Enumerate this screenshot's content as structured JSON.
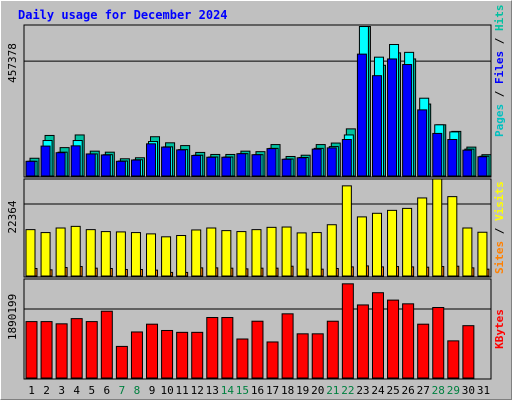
{
  "chart_data": {
    "type": "bar",
    "title": "Daily usage for December 2024",
    "categories": [
      "1",
      "2",
      "3",
      "4",
      "5",
      "6",
      "7",
      "8",
      "9",
      "10",
      "11",
      "12",
      "13",
      "14",
      "15",
      "16",
      "17",
      "18",
      "19",
      "20",
      "21",
      "22",
      "23",
      "24",
      "25",
      "26",
      "27",
      "28",
      "29",
      "30",
      "31"
    ],
    "weekend_days": [
      "7",
      "8",
      "14",
      "15",
      "21",
      "22",
      "28",
      "29"
    ],
    "top_panel": {
      "scale_label": "457378",
      "scale_value": 457378,
      "ylim": [
        0,
        600000
      ],
      "series": [
        {
          "name": "Pages",
          "color": "#0000ff",
          "values": [
            62000,
            122000,
            96000,
            123000,
            91000,
            87000,
            62000,
            67000,
            131000,
            118000,
            107000,
            85000,
            78000,
            78000,
            92000,
            88000,
            112000,
            70000,
            76000,
            110000,
            115000,
            148000,
            485000,
            400000,
            466000,
            444000,
            265000,
            172000,
            148000,
            106000,
            80000
          ]
        },
        {
          "name": "Files",
          "color": "#00ffff",
          "values": [
            62000,
            144000,
            98000,
            144000,
            91000,
            88000,
            63000,
            68000,
            140000,
            119000,
            108000,
            86000,
            79000,
            79000,
            92000,
            88000,
            113000,
            71000,
            77000,
            113000,
            120000,
            166000,
            594000,
            473000,
            523000,
            492000,
            311000,
            206000,
            178000,
            110000,
            82000
          ]
        },
        {
          "name": "Hits",
          "color": "#00c0a0",
          "values": [
            74000,
            164000,
            116000,
            166000,
            102000,
            98000,
            72000,
            76000,
            159000,
            135000,
            124000,
            97000,
            89000,
            89000,
            102000,
            100000,
            128000,
            81000,
            86000,
            128000,
            134000,
            190000,
            594000,
            441000,
            490000,
            466000,
            288000,
            206000,
            180000,
            118000,
            88000
          ]
        }
      ]
    },
    "middle_panel": {
      "scale_label": "22364",
      "scale_value": 22364,
      "ylim": [
        0,
        30000
      ],
      "series": [
        {
          "name": "Sites",
          "color": "#ff8000",
          "values": [
            2600,
            2200,
            2900,
            3200,
            2700,
            2600,
            2300,
            2300,
            2100,
            1400,
            1400,
            2800,
            2800,
            2700,
            2500,
            2700,
            2700,
            3300,
            2400,
            2400,
            2600,
            3100,
            3400,
            3100,
            3200,
            3100,
            3000,
            3200,
            3300,
            2800,
            2400
          ]
        },
        {
          "name": "Visits",
          "color": "#ffff00",
          "values": [
            14500,
            13600,
            15000,
            15500,
            14500,
            13900,
            13800,
            13600,
            13200,
            12300,
            12700,
            14400,
            15000,
            14200,
            13900,
            14500,
            15200,
            15300,
            13500,
            13600,
            16000,
            27900,
            18400,
            19500,
            20400,
            21000,
            24200,
            30000,
            24600,
            15000,
            13700
          ]
        }
      ]
    },
    "bottom_panel": {
      "scale_label": "1890199",
      "scale_value": 1890199,
      "ylim": [
        0,
        2700000
      ],
      "series": [
        {
          "name": "KBytes",
          "color": "#ff0000",
          "values": [
            1550000,
            1550000,
            1490000,
            1630000,
            1550000,
            1830000,
            880000,
            1270000,
            1480000,
            1310000,
            1260000,
            1260000,
            1660000,
            1660000,
            1080000,
            1560000,
            1000000,
            1760000,
            1220000,
            1220000,
            1560000,
            2570000,
            2000000,
            2330000,
            2130000,
            2030000,
            1480000,
            1930000,
            1030000,
            1440000,
            0
          ]
        }
      ]
    },
    "legend": {
      "top": [
        "Pages",
        " / ",
        "Files",
        " / ",
        "Hits"
      ],
      "middle": [
        "Sites",
        " / ",
        "Visits"
      ],
      "bottom": [
        "KBytes"
      ]
    },
    "colors": {
      "background": "#c0c0c0",
      "plot_border": "#000000",
      "title": "#0000ff",
      "label_pages": "#00c0c0",
      "label_files": "#0000ff",
      "label_hits": "#00c0a0",
      "label_sites": "#ff8000",
      "label_visits": "#ffff00",
      "label_kbytes": "#ff0000",
      "weekday_label": "#000000",
      "weekend_label": "#008040"
    }
  }
}
